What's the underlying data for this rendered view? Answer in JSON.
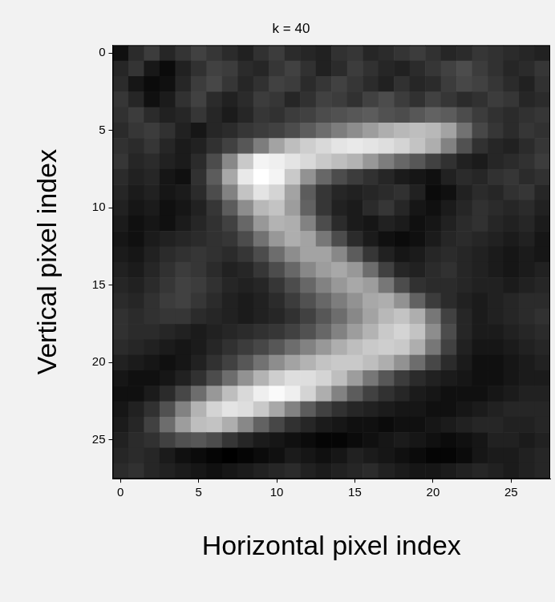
{
  "chart_data": {
    "type": "heatmap",
    "title": "k = 40",
    "x_label": "Horizontal pixel index",
    "y_label": "Vertical pixel index",
    "xlim": [
      -0.5,
      27.5
    ],
    "ylim": [
      27.5,
      -0.5
    ],
    "xticks": [
      0,
      5,
      10,
      15,
      20,
      25
    ],
    "yticks": [
      0,
      5,
      10,
      15,
      20,
      25
    ],
    "color": "gray",
    "cells": [
      [
        12,
        22,
        28,
        20,
        25,
        30,
        26,
        22,
        18,
        24,
        28,
        22,
        20,
        18,
        24,
        26,
        20,
        22,
        25,
        28,
        24,
        20,
        22,
        26,
        24,
        22,
        20,
        18
      ],
      [
        20,
        25,
        15,
        10,
        18,
        24,
        30,
        28,
        22,
        20,
        26,
        30,
        24,
        18,
        22,
        28,
        24,
        20,
        18,
        22,
        26,
        30,
        34,
        28,
        24,
        20,
        22,
        26
      ],
      [
        22,
        14,
        10,
        12,
        20,
        28,
        32,
        26,
        20,
        24,
        30,
        28,
        22,
        26,
        30,
        26,
        22,
        18,
        24,
        20,
        22,
        28,
        32,
        30,
        26,
        22,
        18,
        24
      ],
      [
        26,
        20,
        12,
        16,
        24,
        30,
        22,
        18,
        22,
        28,
        26,
        20,
        24,
        30,
        28,
        24,
        30,
        34,
        28,
        24,
        30,
        26,
        22,
        24,
        28,
        26,
        20,
        22
      ],
      [
        24,
        28,
        22,
        18,
        20,
        26,
        20,
        16,
        20,
        26,
        24,
        28,
        30,
        34,
        36,
        38,
        40,
        36,
        34,
        38,
        42,
        40,
        34,
        28,
        24,
        22,
        24,
        26
      ],
      [
        22,
        26,
        28,
        24,
        18,
        14,
        20,
        22,
        26,
        28,
        30,
        34,
        40,
        46,
        52,
        58,
        64,
        70,
        74,
        76,
        74,
        66,
        48,
        32,
        26,
        22,
        26,
        24
      ],
      [
        24,
        22,
        26,
        20,
        16,
        18,
        24,
        30,
        38,
        52,
        66,
        76,
        82,
        86,
        90,
        92,
        90,
        88,
        84,
        78,
        70,
        54,
        36,
        24,
        20,
        18,
        22,
        26
      ],
      [
        26,
        20,
        22,
        18,
        16,
        22,
        34,
        56,
        80,
        96,
        94,
        90,
        86,
        80,
        76,
        72,
        62,
        52,
        44,
        38,
        30,
        24,
        18,
        16,
        20,
        22,
        24,
        28
      ],
      [
        22,
        18,
        20,
        14,
        12,
        24,
        40,
        68,
        92,
        100,
        96,
        80,
        60,
        44,
        34,
        28,
        24,
        20,
        16,
        14,
        12,
        18,
        22,
        20,
        24,
        26,
        22,
        24
      ],
      [
        20,
        16,
        18,
        14,
        16,
        22,
        34,
        54,
        78,
        90,
        84,
        66,
        40,
        26,
        20,
        18,
        20,
        22,
        24,
        18,
        10,
        12,
        18,
        22,
        20,
        24,
        26,
        20
      ],
      [
        18,
        14,
        16,
        12,
        14,
        18,
        26,
        40,
        58,
        74,
        78,
        64,
        42,
        26,
        18,
        16,
        22,
        26,
        20,
        14,
        12,
        16,
        20,
        24,
        22,
        20,
        22,
        18
      ],
      [
        16,
        12,
        14,
        12,
        16,
        20,
        24,
        30,
        44,
        62,
        72,
        70,
        54,
        34,
        22,
        16,
        14,
        18,
        16,
        12,
        14,
        18,
        22,
        24,
        20,
        18,
        20,
        16
      ],
      [
        14,
        12,
        16,
        18,
        20,
        22,
        24,
        26,
        34,
        48,
        62,
        70,
        66,
        50,
        34,
        22,
        16,
        12,
        10,
        12,
        16,
        20,
        22,
        20,
        18,
        16,
        18,
        14
      ],
      [
        16,
        14,
        18,
        22,
        24,
        26,
        24,
        22,
        26,
        34,
        46,
        58,
        66,
        66,
        56,
        40,
        26,
        18,
        14,
        16,
        20,
        22,
        20,
        18,
        16,
        14,
        16,
        14
      ],
      [
        18,
        16,
        20,
        24,
        28,
        26,
        22,
        18,
        20,
        26,
        34,
        44,
        56,
        64,
        68,
        62,
        46,
        30,
        20,
        18,
        22,
        24,
        20,
        18,
        16,
        14,
        16,
        18
      ],
      [
        20,
        18,
        22,
        26,
        30,
        28,
        24,
        20,
        18,
        20,
        26,
        34,
        44,
        54,
        62,
        68,
        64,
        50,
        34,
        24,
        22,
        22,
        20,
        18,
        18,
        16,
        18,
        20
      ],
      [
        22,
        20,
        24,
        28,
        30,
        26,
        22,
        18,
        16,
        18,
        22,
        28,
        36,
        44,
        52,
        60,
        68,
        70,
        60,
        42,
        28,
        22,
        18,
        16,
        18,
        20,
        22,
        22
      ],
      [
        24,
        22,
        24,
        26,
        26,
        22,
        20,
        18,
        16,
        18,
        20,
        24,
        30,
        38,
        46,
        56,
        66,
        74,
        78,
        70,
        50,
        30,
        20,
        16,
        18,
        20,
        22,
        24
      ],
      [
        24,
        22,
        22,
        20,
        18,
        16,
        18,
        20,
        22,
        24,
        26,
        30,
        36,
        44,
        54,
        64,
        72,
        80,
        84,
        78,
        58,
        34,
        20,
        16,
        16,
        18,
        20,
        22
      ],
      [
        22,
        20,
        18,
        16,
        14,
        16,
        20,
        24,
        28,
        32,
        38,
        46,
        54,
        62,
        70,
        76,
        80,
        82,
        80,
        70,
        50,
        30,
        18,
        14,
        14,
        16,
        18,
        20
      ],
      [
        18,
        16,
        14,
        12,
        14,
        18,
        24,
        30,
        38,
        48,
        58,
        66,
        72,
        78,
        80,
        80,
        76,
        70,
        60,
        46,
        32,
        22,
        16,
        12,
        12,
        14,
        16,
        18
      ],
      [
        14,
        12,
        12,
        14,
        18,
        24,
        34,
        46,
        60,
        72,
        82,
        88,
        88,
        84,
        76,
        64,
        50,
        38,
        28,
        22,
        18,
        16,
        14,
        12,
        12,
        14,
        16,
        16
      ],
      [
        12,
        12,
        16,
        22,
        32,
        46,
        62,
        76,
        86,
        94,
        98,
        94,
        84,
        70,
        54,
        40,
        30,
        24,
        20,
        16,
        14,
        12,
        12,
        12,
        14,
        16,
        18,
        18
      ],
      [
        14,
        18,
        24,
        36,
        54,
        72,
        84,
        90,
        88,
        80,
        68,
        54,
        40,
        30,
        24,
        20,
        18,
        16,
        14,
        14,
        12,
        12,
        14,
        16,
        18,
        20,
        20,
        20
      ],
      [
        16,
        20,
        30,
        46,
        64,
        76,
        78,
        70,
        56,
        42,
        32,
        24,
        20,
        16,
        14,
        12,
        12,
        10,
        12,
        12,
        14,
        16,
        18,
        20,
        20,
        18,
        18,
        20
      ],
      [
        18,
        22,
        24,
        30,
        36,
        38,
        34,
        26,
        20,
        16,
        14,
        12,
        10,
        8,
        8,
        10,
        12,
        14,
        16,
        14,
        12,
        10,
        12,
        14,
        18,
        18,
        16,
        18
      ],
      [
        20,
        22,
        20,
        16,
        12,
        10,
        8,
        6,
        8,
        10,
        12,
        16,
        14,
        12,
        14,
        18,
        16,
        14,
        12,
        10,
        8,
        8,
        10,
        14,
        16,
        16,
        18,
        20
      ],
      [
        22,
        24,
        20,
        18,
        16,
        14,
        12,
        14,
        16,
        18,
        20,
        22,
        18,
        16,
        18,
        20,
        22,
        18,
        16,
        14,
        14,
        16,
        18,
        20,
        18,
        16,
        18,
        20
      ]
    ]
  }
}
